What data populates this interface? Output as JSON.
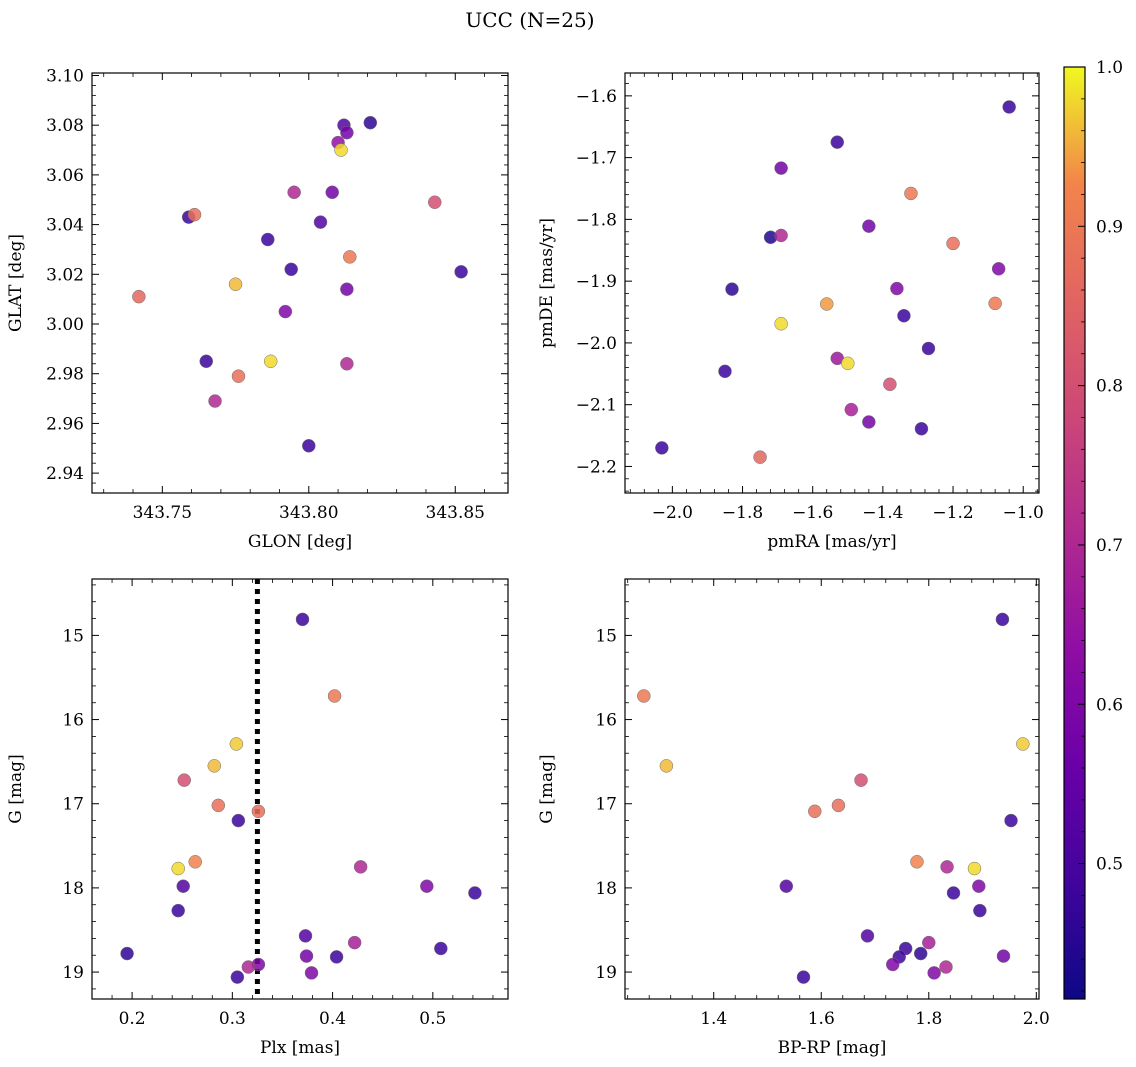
{
  "title": "UCC (N=25)",
  "colorbar": {
    "min": 0.415,
    "max": 1.0,
    "ticks": [
      0.5,
      0.6,
      0.7,
      0.8,
      0.9,
      1.0
    ],
    "tick_labels": [
      "0.5",
      "0.6",
      "0.7",
      "0.8",
      "0.9",
      "1.0"
    ],
    "colormap": "plasma"
  },
  "chart_data": [
    {
      "type": "scatter",
      "panel": "top-left",
      "xlabel": "GLON [deg]",
      "ylabel": "GLAT [deg]",
      "xlim": [
        343.726,
        343.868
      ],
      "ylim": [
        2.932,
        3.101
      ],
      "xticks": [
        343.75,
        343.8,
        343.85
      ],
      "xtick_labels": [
        "343.75",
        "343.80",
        "343.85"
      ],
      "yticks": [
        2.94,
        2.96,
        2.98,
        3.0,
        3.02,
        3.04,
        3.06,
        3.08,
        3.1
      ],
      "ytick_labels": [
        "2.94",
        "2.96",
        "2.98",
        "3.00",
        "3.02",
        "3.04",
        "3.06",
        "3.08",
        "3.10"
      ],
      "points": [
        {
          "x": 343.821,
          "y": 3.081,
          "c": 0.46
        },
        {
          "x": 343.812,
          "y": 3.08,
          "c": 0.52
        },
        {
          "x": 343.813,
          "y": 3.077,
          "c": 0.58
        },
        {
          "x": 343.81,
          "y": 3.073,
          "c": 0.64
        },
        {
          "x": 343.811,
          "y": 3.07,
          "c": 0.98
        },
        {
          "x": 343.795,
          "y": 3.053,
          "c": 0.7
        },
        {
          "x": 343.808,
          "y": 3.053,
          "c": 0.58
        },
        {
          "x": 343.843,
          "y": 3.049,
          "c": 0.8
        },
        {
          "x": 343.759,
          "y": 3.043,
          "c": 0.48
        },
        {
          "x": 343.761,
          "y": 3.044,
          "c": 0.88
        },
        {
          "x": 343.804,
          "y": 3.041,
          "c": 0.52
        },
        {
          "x": 343.786,
          "y": 3.034,
          "c": 0.48
        },
        {
          "x": 343.814,
          "y": 3.027,
          "c": 0.9
        },
        {
          "x": 343.794,
          "y": 3.022,
          "c": 0.48
        },
        {
          "x": 343.852,
          "y": 3.021,
          "c": 0.48
        },
        {
          "x": 343.775,
          "y": 3.016,
          "c": 0.96
        },
        {
          "x": 343.813,
          "y": 3.014,
          "c": 0.58
        },
        {
          "x": 343.742,
          "y": 3.011,
          "c": 0.86
        },
        {
          "x": 343.792,
          "y": 3.005,
          "c": 0.6
        },
        {
          "x": 343.765,
          "y": 2.985,
          "c": 0.48
        },
        {
          "x": 343.787,
          "y": 2.985,
          "c": 0.98
        },
        {
          "x": 343.813,
          "y": 2.984,
          "c": 0.7
        },
        {
          "x": 343.776,
          "y": 2.979,
          "c": 0.88
        },
        {
          "x": 343.768,
          "y": 2.969,
          "c": 0.7
        },
        {
          "x": 343.8,
          "y": 2.951,
          "c": 0.48
        }
      ]
    },
    {
      "type": "scatter",
      "panel": "top-right",
      "xlabel": "pmRA [mas/yr]",
      "ylabel": "pmDE [mas/yr]",
      "xlim": [
        -2.135,
        -0.955
      ],
      "ylim": [
        -2.243,
        -1.563
      ],
      "xticks": [
        -2.0,
        -1.8,
        -1.6,
        -1.4,
        -1.2,
        -1.0
      ],
      "xtick_labels": [
        "−2.0",
        "−1.8",
        "−1.6",
        "−1.4",
        "−1.2",
        "−1.0"
      ],
      "yticks": [
        -2.2,
        -2.1,
        -2.0,
        -1.9,
        -1.8,
        -1.7,
        -1.6
      ],
      "ytick_labels": [
        "−2.2",
        "−2.1",
        "−2.0",
        "−1.9",
        "−1.8",
        "−1.7",
        "−1.6"
      ],
      "points": [
        {
          "x": -1.04,
          "y": -1.618,
          "c": 0.48
        },
        {
          "x": -1.53,
          "y": -1.675,
          "c": 0.48
        },
        {
          "x": -1.69,
          "y": -1.717,
          "c": 0.58
        },
        {
          "x": -1.32,
          "y": -1.758,
          "c": 0.9
        },
        {
          "x": -1.44,
          "y": -1.811,
          "c": 0.58
        },
        {
          "x": -1.72,
          "y": -1.829,
          "c": 0.44
        },
        {
          "x": -1.69,
          "y": -1.826,
          "c": 0.7
        },
        {
          "x": -1.2,
          "y": -1.839,
          "c": 0.88
        },
        {
          "x": -1.07,
          "y": -1.88,
          "c": 0.6
        },
        {
          "x": -1.83,
          "y": -1.913,
          "c": 0.46
        },
        {
          "x": -1.36,
          "y": -1.912,
          "c": 0.6
        },
        {
          "x": -1.56,
          "y": -1.937,
          "c": 0.94
        },
        {
          "x": -1.08,
          "y": -1.936,
          "c": 0.9
        },
        {
          "x": -1.34,
          "y": -1.956,
          "c": 0.48
        },
        {
          "x": -1.69,
          "y": -1.969,
          "c": 0.98
        },
        {
          "x": -1.27,
          "y": -2.009,
          "c": 0.48
        },
        {
          "x": -1.53,
          "y": -2.025,
          "c": 0.66
        },
        {
          "x": -1.5,
          "y": -2.033,
          "c": 0.98
        },
        {
          "x": -1.85,
          "y": -2.046,
          "c": 0.48
        },
        {
          "x": -1.38,
          "y": -2.067,
          "c": 0.8
        },
        {
          "x": -1.49,
          "y": -2.108,
          "c": 0.68
        },
        {
          "x": -1.44,
          "y": -2.128,
          "c": 0.58
        },
        {
          "x": -1.29,
          "y": -2.139,
          "c": 0.48
        },
        {
          "x": -2.03,
          "y": -2.17,
          "c": 0.48
        },
        {
          "x": -1.75,
          "y": -2.185,
          "c": 0.86
        }
      ]
    },
    {
      "type": "scatter",
      "panel": "bottom-left",
      "xlabel": "Plx [mas]",
      "ylabel": "G [mag]",
      "xlim": [
        0.16,
        0.575
      ],
      "ylim": [
        19.32,
        14.33
      ],
      "y_inverted": true,
      "vline": {
        "x": 0.325,
        "style": "dotted"
      },
      "xticks": [
        0.2,
        0.3,
        0.4,
        0.5
      ],
      "xtick_labels": [
        "0.2",
        "0.3",
        "0.4",
        "0.5"
      ],
      "yticks": [
        15,
        16,
        17,
        18,
        19
      ],
      "ytick_labels": [
        "15",
        "16",
        "17",
        "18",
        "19"
      ],
      "points": [
        {
          "x": 0.37,
          "y": 14.81,
          "c": 0.48
        },
        {
          "x": 0.402,
          "y": 15.72,
          "c": 0.9
        },
        {
          "x": 0.304,
          "y": 16.29,
          "c": 0.97
        },
        {
          "x": 0.282,
          "y": 16.55,
          "c": 0.96
        },
        {
          "x": 0.252,
          "y": 16.72,
          "c": 0.8
        },
        {
          "x": 0.286,
          "y": 17.02,
          "c": 0.88
        },
        {
          "x": 0.326,
          "y": 17.09,
          "c": 0.88
        },
        {
          "x": 0.306,
          "y": 17.2,
          "c": 0.48
        },
        {
          "x": 0.263,
          "y": 17.69,
          "c": 0.92
        },
        {
          "x": 0.246,
          "y": 17.77,
          "c": 0.98
        },
        {
          "x": 0.428,
          "y": 17.75,
          "c": 0.7
        },
        {
          "x": 0.251,
          "y": 17.98,
          "c": 0.52
        },
        {
          "x": 0.494,
          "y": 17.98,
          "c": 0.6
        },
        {
          "x": 0.542,
          "y": 18.06,
          "c": 0.48
        },
        {
          "x": 0.246,
          "y": 18.27,
          "c": 0.48
        },
        {
          "x": 0.373,
          "y": 18.57,
          "c": 0.52
        },
        {
          "x": 0.422,
          "y": 18.65,
          "c": 0.68
        },
        {
          "x": 0.508,
          "y": 18.72,
          "c": 0.48
        },
        {
          "x": 0.195,
          "y": 18.78,
          "c": 0.46
        },
        {
          "x": 0.374,
          "y": 18.81,
          "c": 0.58
        },
        {
          "x": 0.404,
          "y": 18.82,
          "c": 0.48
        },
        {
          "x": 0.326,
          "y": 18.91,
          "c": 0.6
        },
        {
          "x": 0.316,
          "y": 18.94,
          "c": 0.7
        },
        {
          "x": 0.379,
          "y": 19.01,
          "c": 0.6
        },
        {
          "x": 0.305,
          "y": 19.06,
          "c": 0.48
        }
      ]
    },
    {
      "type": "scatter",
      "panel": "bottom-right",
      "xlabel": "BP-RP [mag]",
      "ylabel": "G [mag]",
      "xlim": [
        1.235,
        2.005
      ],
      "ylim": [
        19.32,
        14.33
      ],
      "y_inverted": true,
      "xticks": [
        1.4,
        1.6,
        1.8,
        2.0
      ],
      "xtick_labels": [
        "1.4",
        "1.6",
        "1.8",
        "2.0"
      ],
      "yticks": [
        15,
        16,
        17,
        18,
        19
      ],
      "ytick_labels": [
        "15",
        "16",
        "17",
        "18",
        "19"
      ],
      "points": [
        {
          "x": 1.937,
          "y": 14.81,
          "c": 0.48
        },
        {
          "x": 1.27,
          "y": 15.72,
          "c": 0.9
        },
        {
          "x": 1.975,
          "y": 16.29,
          "c": 0.97
        },
        {
          "x": 1.312,
          "y": 16.55,
          "c": 0.96
        },
        {
          "x": 1.674,
          "y": 16.72,
          "c": 0.8
        },
        {
          "x": 1.632,
          "y": 17.02,
          "c": 0.88
        },
        {
          "x": 1.588,
          "y": 17.09,
          "c": 0.88
        },
        {
          "x": 1.953,
          "y": 17.2,
          "c": 0.48
        },
        {
          "x": 1.778,
          "y": 17.69,
          "c": 0.92
        },
        {
          "x": 1.834,
          "y": 17.75,
          "c": 0.7
        },
        {
          "x": 1.885,
          "y": 17.77,
          "c": 0.98
        },
        {
          "x": 1.535,
          "y": 17.98,
          "c": 0.52
        },
        {
          "x": 1.893,
          "y": 17.98,
          "c": 0.6
        },
        {
          "x": 1.846,
          "y": 18.06,
          "c": 0.48
        },
        {
          "x": 1.895,
          "y": 18.27,
          "c": 0.48
        },
        {
          "x": 1.686,
          "y": 18.57,
          "c": 0.52
        },
        {
          "x": 1.8,
          "y": 18.65,
          "c": 0.68
        },
        {
          "x": 1.757,
          "y": 18.72,
          "c": 0.48
        },
        {
          "x": 1.785,
          "y": 18.78,
          "c": 0.46
        },
        {
          "x": 1.745,
          "y": 18.82,
          "c": 0.48
        },
        {
          "x": 1.939,
          "y": 18.81,
          "c": 0.58
        },
        {
          "x": 1.733,
          "y": 18.91,
          "c": 0.6
        },
        {
          "x": 1.832,
          "y": 18.94,
          "c": 0.7
        },
        {
          "x": 1.81,
          "y": 19.01,
          "c": 0.6
        },
        {
          "x": 1.567,
          "y": 19.06,
          "c": 0.48
        }
      ]
    }
  ]
}
